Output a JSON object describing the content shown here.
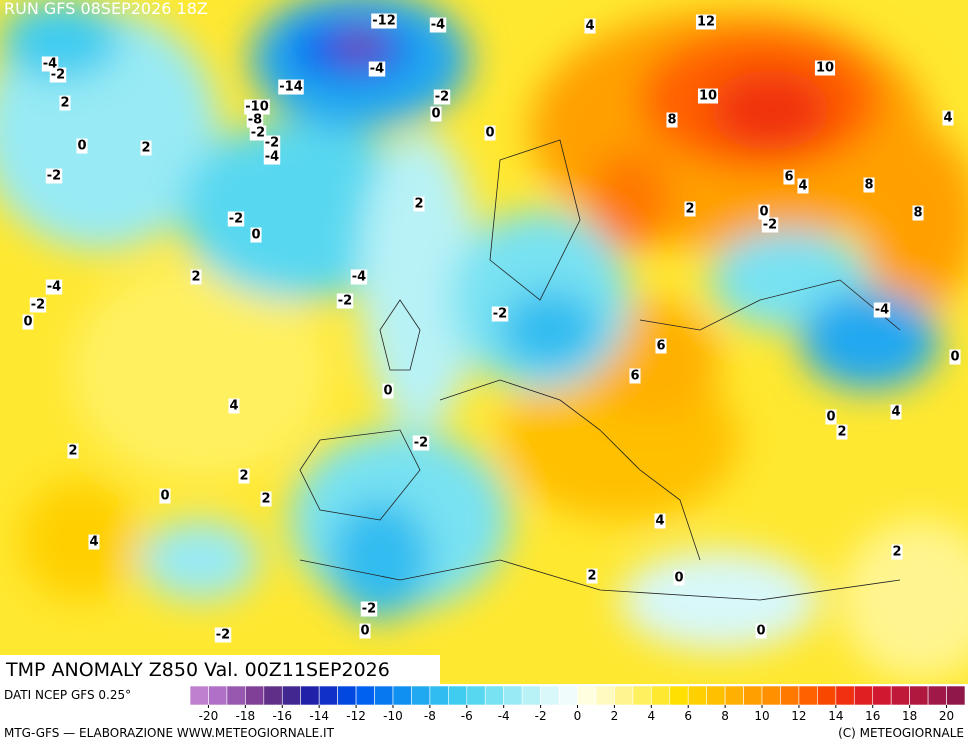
{
  "header": {
    "run": "RUN GFS 08SEP2026 18Z"
  },
  "map": {
    "title": "TMP ANOMALY Z850 Val. 00Z11SEP2026",
    "contour_labels": [
      -4,
      -2,
      2,
      0,
      2,
      -2,
      -2,
      0,
      2,
      -4,
      -2,
      0,
      -12,
      -4,
      -4,
      -14,
      -10,
      -8,
      -2,
      -2,
      -4,
      -2,
      0,
      0,
      4,
      12,
      10,
      10,
      8,
      4,
      6,
      4,
      8,
      8,
      2,
      2,
      0,
      -2,
      -4,
      -2,
      -2,
      -4,
      6,
      0,
      6,
      0,
      4,
      0,
      2,
      4,
      -2,
      2,
      2,
      2,
      0,
      4,
      4,
      2,
      2,
      0,
      -2,
      0,
      -2,
      0
    ]
  },
  "colorbar": {
    "source": "DATI NCEP GFS 0.25°",
    "range": [
      -21,
      21
    ],
    "ticks": [
      -20,
      -18,
      -16,
      -14,
      -12,
      -10,
      -8,
      -6,
      -4,
      -2,
      0,
      2,
      4,
      6,
      8,
      10,
      12,
      14,
      16,
      18,
      20
    ],
    "colors": [
      "#c080d0",
      "#b070c8",
      "#9858b0",
      "#804098",
      "#603088",
      "#402890",
      "#2020a8",
      "#1030c8",
      "#0048e0",
      "#0060f0",
      "#0878f0",
      "#1090f0",
      "#20a8f0",
      "#30bcf0",
      "#40ccf0",
      "#58d8f0",
      "#78e2f2",
      "#98eaf4",
      "#b8f2f6",
      "#d8f8fa",
      "#f0fcfc",
      "#ffffe0",
      "#fffac0",
      "#fff590",
      "#fff060",
      "#ffe830",
      "#ffe000",
      "#ffd000",
      "#ffc000",
      "#ffb000",
      "#ffa000",
      "#ff9000",
      "#ff7800",
      "#ff6000",
      "#f84800",
      "#f03010",
      "#e02020",
      "#d01830",
      "#c01838",
      "#b01840",
      "#a01848",
      "#901848"
    ]
  },
  "footer": {
    "left": "MTG-GFS — ELABORAZIONE WWW.METEOGIORNALE.IT",
    "right": "(C) METEOGIORNALE"
  }
}
